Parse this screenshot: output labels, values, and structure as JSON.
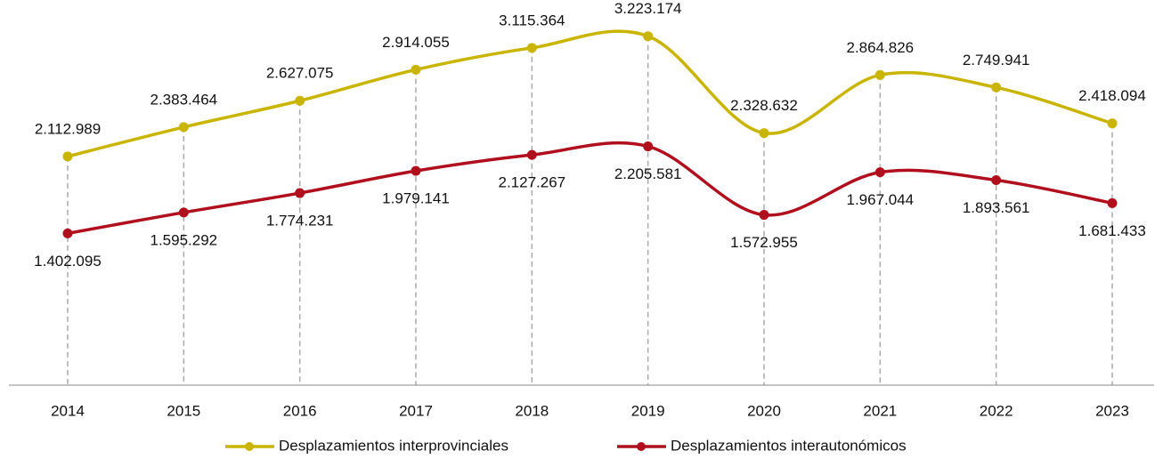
{
  "chart_data": {
    "type": "line",
    "categories": [
      "2014",
      "2015",
      "2016",
      "2017",
      "2018",
      "2019",
      "2020",
      "2021",
      "2022",
      "2023"
    ],
    "series": [
      {
        "name": "Desplazamientos interprovinciales",
        "color": "#c9b400",
        "values": [
          2112989,
          2383464,
          2627075,
          2914055,
          3115364,
          3223174,
          2328632,
          2864826,
          2749941,
          2418094
        ],
        "value_labels": [
          "2.112.989",
          "2.383.464",
          "2.627.075",
          "2.914.055",
          "3.115.364",
          "3.223.174",
          "2.328.632",
          "2.864.826",
          "2.749.941",
          "2.418.094"
        ]
      },
      {
        "name": "Desplazamientos interautonómicos",
        "color": "#b0101e",
        "values": [
          1402095,
          1595292,
          1774231,
          1979141,
          2127267,
          2205581,
          1572955,
          1967044,
          1893561,
          1681433
        ],
        "value_labels": [
          "1.402.095",
          "1.595.292",
          "1.774.231",
          "1.979.141",
          "2.127.267",
          "2.205.581",
          "1.572.955",
          "1.967.044",
          "1.893.561",
          "1.681.433"
        ]
      }
    ],
    "ylim": [
      0,
      3500000
    ],
    "legend": "bottom"
  }
}
